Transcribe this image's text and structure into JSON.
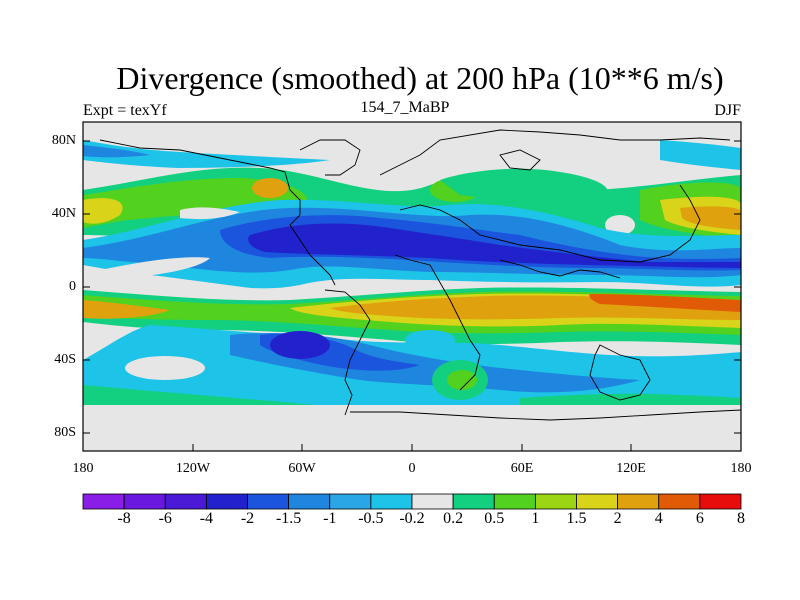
{
  "title": "Divergence (smoothed) at 200 hPa (10**6 m/s)",
  "subtitle_left": "Expt = texYf",
  "subtitle_center": "154_7_MaBP",
  "subtitle_right": "DJF",
  "lat_ticks": [
    "80N",
    "40N",
    "0",
    "40S",
    "80S"
  ],
  "lon_ticks": [
    "180",
    "120W",
    "60W",
    "0",
    "60E",
    "120E",
    "180"
  ],
  "colorbar": {
    "labels": [
      "-8",
      "-6",
      "-4",
      "-2",
      "-1.5",
      "-1",
      "-0.5",
      "-0.2",
      "0.2",
      "0.5",
      "1",
      "1.5",
      "2",
      "4",
      "6",
      "8"
    ],
    "colors": [
      "#8a1de6",
      "#6a18e0",
      "#4a1ad6",
      "#2222cc",
      "#1b55dd",
      "#1f86e0",
      "#2aa5e6",
      "#1ec3e8",
      "#e6e6e6",
      "#12d07f",
      "#52d11e",
      "#9bd513",
      "#d9d31a",
      "#e0a10e",
      "#e15a05",
      "#e80d0d"
    ]
  }
}
